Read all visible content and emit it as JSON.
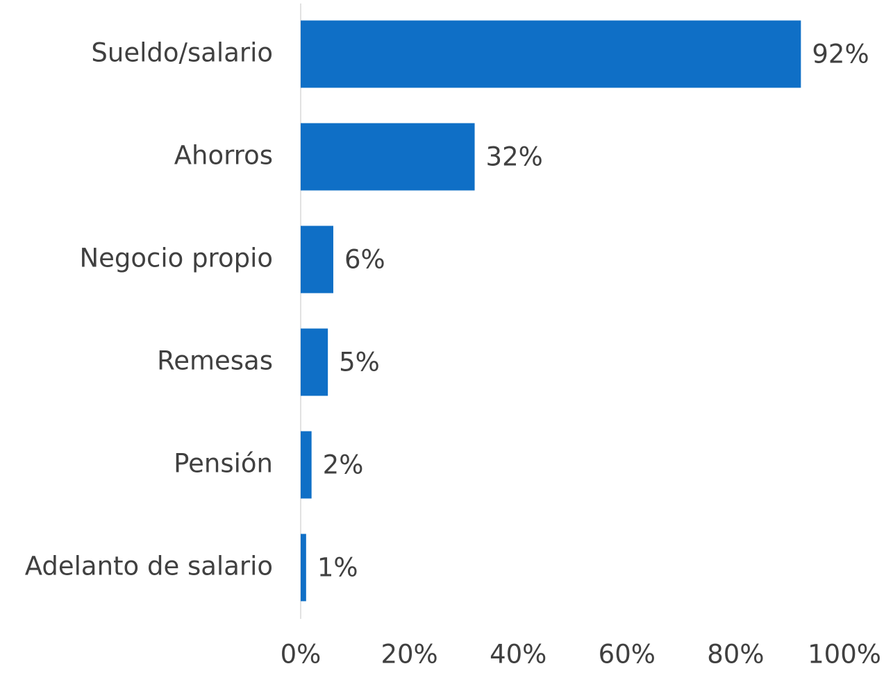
{
  "chart_data": {
    "type": "bar",
    "orientation": "horizontal",
    "categories": [
      "Sueldo/salario",
      "Ahorros",
      "Negocio propio",
      "Remesas",
      "Pensión",
      "Adelanto de salario"
    ],
    "values": [
      92,
      32,
      6,
      5,
      2,
      1
    ],
    "value_labels": [
      "92%",
      "32%",
      "6%",
      "5%",
      "2%",
      "1%"
    ],
    "color": "#0f6fc6",
    "xlim": [
      0,
      100
    ],
    "xticks": [
      {
        "value": 0,
        "label": "0%"
      },
      {
        "value": 20,
        "label": "20%"
      },
      {
        "value": 40,
        "label": "40%"
      },
      {
        "value": 60,
        "label": "60%"
      },
      {
        "value": 80,
        "label": "80%"
      },
      {
        "value": 100,
        "label": "100%"
      }
    ],
    "grid": false
  }
}
